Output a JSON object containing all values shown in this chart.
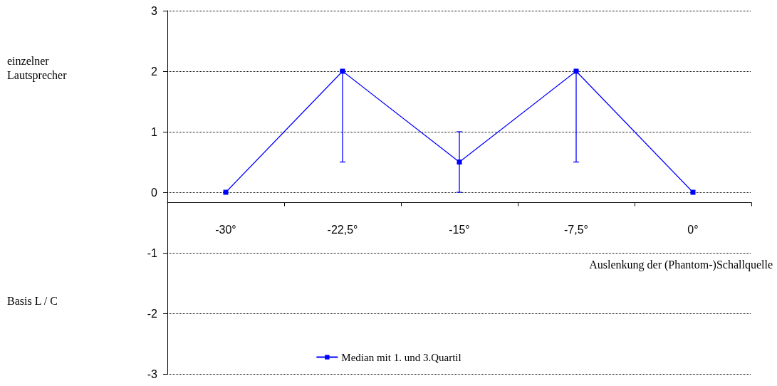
{
  "chart_data": {
    "type": "line",
    "categories": [
      "-30°",
      "-22,5°",
      "-15°",
      "-7,5°",
      "0°"
    ],
    "series": [
      {
        "name": "Median mit 1. und 3.Quartil",
        "color": "#0000ff",
        "values": [
          0,
          2,
          0.5,
          2,
          0
        ],
        "errors": [
          null,
          [
            0.5,
            2
          ],
          [
            0,
            1
          ],
          [
            0.5,
            2
          ],
          null
        ]
      }
    ],
    "xlabel": "Auslenkung der (Phantom-)Schallquelle",
    "ylim": [
      -3,
      3
    ],
    "yticks": [
      -3,
      -2,
      -1,
      0,
      1,
      2,
      3
    ],
    "annotations": [
      "einzelner Lautsprecher",
      "Basis L / C"
    ],
    "grid": "y",
    "legend": "bottom",
    "marker": "square",
    "line_style": "solid"
  }
}
